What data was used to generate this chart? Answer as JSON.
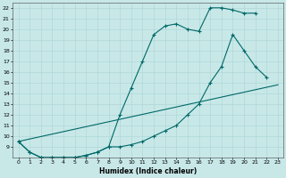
{
  "xlabel": "Humidex (Indice chaleur)",
  "background_color": "#c8e8e8",
  "grid_color": "#b0d8d8",
  "line_color": "#006868",
  "xlim": [
    -0.5,
    23.5
  ],
  "ylim": [
    8,
    22.5
  ],
  "xticks": [
    0,
    1,
    2,
    3,
    4,
    5,
    6,
    7,
    8,
    9,
    10,
    11,
    12,
    13,
    14,
    15,
    16,
    17,
    18,
    19,
    20,
    21,
    22,
    23
  ],
  "yticks": [
    9,
    10,
    11,
    12,
    13,
    14,
    15,
    16,
    17,
    18,
    19,
    20,
    21,
    22
  ],
  "line1_x": [
    0,
    1,
    2,
    3,
    4,
    5,
    6,
    7,
    8,
    9,
    10,
    11,
    12,
    13,
    14,
    15,
    16,
    17,
    18,
    19,
    20,
    21
  ],
  "line1_y": [
    9.5,
    8.5,
    8.0,
    8.0,
    8.0,
    8.0,
    8.2,
    8.5,
    9.0,
    12.0,
    14.5,
    17.0,
    19.5,
    20.3,
    20.5,
    20.0,
    19.8,
    22.0,
    22.0,
    21.8,
    21.5,
    21.5
  ],
  "line2_x": [
    0,
    1,
    2,
    3,
    4,
    5,
    6,
    7,
    8,
    9,
    10,
    11,
    12,
    13,
    14,
    15,
    16,
    17,
    18,
    19,
    20,
    21,
    22
  ],
  "line2_y": [
    9.5,
    8.5,
    8.0,
    8.0,
    8.0,
    8.0,
    8.2,
    8.5,
    9.0,
    9.0,
    9.2,
    9.5,
    10.0,
    10.5,
    11.0,
    12.0,
    13.0,
    15.0,
    16.5,
    19.5,
    18.0,
    16.5,
    15.5
  ],
  "line3_x": [
    0,
    23
  ],
  "line3_y": [
    9.5,
    14.8
  ]
}
